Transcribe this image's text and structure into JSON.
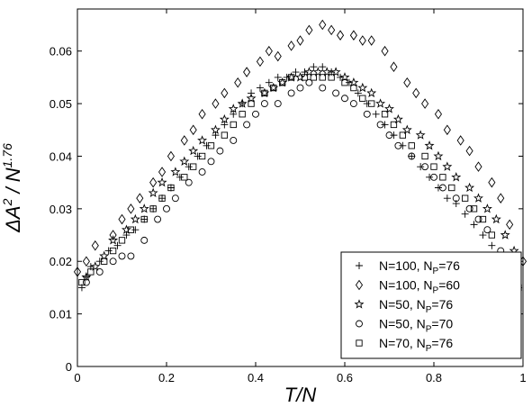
{
  "chart_data": {
    "type": "scatter",
    "xlabel": "T/N",
    "ylabel_parts": {
      "delta": "ΔA",
      "sq": "2",
      "mid": " / N",
      "exp": "1.76"
    },
    "xlim": [
      0,
      1
    ],
    "ylim": [
      0,
      0.068
    ],
    "xticks": [
      0,
      0.2,
      0.4,
      0.6,
      0.8,
      1
    ],
    "xtick_labels": [
      "0",
      "0.2",
      "0.4",
      "0.6",
      "0.8",
      "1"
    ],
    "yticks": [
      0,
      0.01,
      0.02,
      0.03,
      0.04,
      0.05,
      0.06
    ],
    "ytick_labels": [
      "0",
      "0.01",
      "0.02",
      "0.03",
      "0.04",
      "0.05",
      "0.06"
    ],
    "grid": false,
    "legend_position": "bottom-right",
    "series": [
      {
        "legend": {
          "a": "N=100, N",
          "sub": "P",
          "b": "=76"
        },
        "marker": "plus",
        "x": [
          0.01,
          0.02,
          0.03,
          0.05,
          0.07,
          0.09,
          0.11,
          0.13,
          0.15,
          0.17,
          0.19,
          0.21,
          0.23,
          0.25,
          0.27,
          0.29,
          0.31,
          0.33,
          0.35,
          0.37,
          0.39,
          0.41,
          0.43,
          0.45,
          0.47,
          0.49,
          0.51,
          0.53,
          0.55,
          0.57,
          0.59,
          0.61,
          0.63,
          0.65,
          0.67,
          0.69,
          0.71,
          0.73,
          0.75,
          0.77,
          0.79,
          0.81,
          0.83,
          0.85,
          0.87,
          0.89,
          0.91,
          0.93,
          0.95,
          0.97,
          0.99
        ],
        "y": [
          0.015,
          0.017,
          0.019,
          0.02,
          0.022,
          0.023,
          0.025,
          0.026,
          0.028,
          0.03,
          0.032,
          0.034,
          0.036,
          0.038,
          0.04,
          0.042,
          0.044,
          0.046,
          0.048,
          0.05,
          0.052,
          0.053,
          0.054,
          0.055,
          0.055,
          0.056,
          0.056,
          0.057,
          0.057,
          0.056,
          0.055,
          0.054,
          0.052,
          0.05,
          0.048,
          0.046,
          0.044,
          0.042,
          0.04,
          0.038,
          0.036,
          0.034,
          0.032,
          0.031,
          0.029,
          0.027,
          0.025,
          0.023,
          0.021,
          0.019,
          0.015
        ]
      },
      {
        "legend": {
          "a": "N=100, N",
          "sub": "P",
          "b": "=60"
        },
        "marker": "diamond",
        "x": [
          0.0,
          0.02,
          0.04,
          0.08,
          0.1,
          0.12,
          0.14,
          0.17,
          0.19,
          0.21,
          0.24,
          0.26,
          0.28,
          0.31,
          0.33,
          0.36,
          0.38,
          0.41,
          0.43,
          0.45,
          0.48,
          0.5,
          0.52,
          0.55,
          0.57,
          0.59,
          0.62,
          0.64,
          0.66,
          0.69,
          0.71,
          0.74,
          0.76,
          0.78,
          0.81,
          0.83,
          0.86,
          0.88,
          0.9,
          0.93,
          0.95,
          0.97,
          1.0
        ],
        "y": [
          0.018,
          0.02,
          0.023,
          0.025,
          0.028,
          0.03,
          0.032,
          0.035,
          0.037,
          0.04,
          0.043,
          0.045,
          0.048,
          0.05,
          0.052,
          0.054,
          0.056,
          0.058,
          0.06,
          0.059,
          0.061,
          0.062,
          0.064,
          0.065,
          0.064,
          0.063,
          0.063,
          0.062,
          0.062,
          0.06,
          0.057,
          0.054,
          0.052,
          0.05,
          0.048,
          0.045,
          0.043,
          0.041,
          0.038,
          0.035,
          0.032,
          0.027,
          0.02
        ]
      },
      {
        "legend": {
          "a": "N=50, N",
          "sub": "P",
          "b": "=76"
        },
        "marker": "star",
        "x": [
          0.02,
          0.04,
          0.06,
          0.08,
          0.11,
          0.13,
          0.15,
          0.17,
          0.19,
          0.22,
          0.24,
          0.26,
          0.28,
          0.31,
          0.33,
          0.35,
          0.37,
          0.39,
          0.42,
          0.44,
          0.46,
          0.48,
          0.5,
          0.52,
          0.54,
          0.56,
          0.58,
          0.6,
          0.62,
          0.64,
          0.66,
          0.68,
          0.7,
          0.72,
          0.74,
          0.77,
          0.79,
          0.81,
          0.83,
          0.85,
          0.88,
          0.9,
          0.92,
          0.94,
          0.96,
          0.98
        ],
        "y": [
          0.017,
          0.019,
          0.021,
          0.024,
          0.026,
          0.028,
          0.03,
          0.033,
          0.035,
          0.037,
          0.039,
          0.041,
          0.043,
          0.045,
          0.047,
          0.049,
          0.05,
          0.051,
          0.052,
          0.053,
          0.054,
          0.055,
          0.055,
          0.056,
          0.056,
          0.056,
          0.056,
          0.055,
          0.054,
          0.053,
          0.052,
          0.05,
          0.049,
          0.047,
          0.045,
          0.044,
          0.042,
          0.04,
          0.038,
          0.036,
          0.034,
          0.032,
          0.03,
          0.028,
          0.025,
          0.022
        ]
      },
      {
        "legend": {
          "a": "N=50, N",
          "sub": "P",
          "b": "=70"
        },
        "marker": "circle",
        "x": [
          0.02,
          0.05,
          0.08,
          0.1,
          0.12,
          0.15,
          0.18,
          0.2,
          0.22,
          0.25,
          0.28,
          0.3,
          0.32,
          0.35,
          0.38,
          0.4,
          0.42,
          0.45,
          0.48,
          0.5,
          0.52,
          0.55,
          0.58,
          0.6,
          0.62,
          0.65,
          0.68,
          0.7,
          0.72,
          0.75,
          0.78,
          0.8,
          0.82,
          0.85,
          0.88,
          0.9,
          0.92,
          0.95,
          0.98
        ],
        "y": [
          0.016,
          0.018,
          0.02,
          0.021,
          0.021,
          0.024,
          0.028,
          0.03,
          0.032,
          0.035,
          0.037,
          0.039,
          0.041,
          0.043,
          0.046,
          0.048,
          0.05,
          0.05,
          0.052,
          0.053,
          0.054,
          0.053,
          0.052,
          0.051,
          0.05,
          0.048,
          0.046,
          0.044,
          0.042,
          0.04,
          0.038,
          0.036,
          0.034,
          0.032,
          0.03,
          0.028,
          0.026,
          0.022,
          0.017
        ]
      },
      {
        "legend": {
          "a": "N=70, N",
          "sub": "P",
          "b": "=76"
        },
        "marker": "square",
        "x": [
          0.01,
          0.03,
          0.06,
          0.08,
          0.1,
          0.12,
          0.15,
          0.17,
          0.19,
          0.21,
          0.24,
          0.26,
          0.28,
          0.3,
          0.33,
          0.35,
          0.37,
          0.39,
          0.42,
          0.44,
          0.46,
          0.48,
          0.51,
          0.53,
          0.55,
          0.57,
          0.6,
          0.62,
          0.64,
          0.66,
          0.69,
          0.71,
          0.73,
          0.75,
          0.78,
          0.8,
          0.82,
          0.84,
          0.87,
          0.89,
          0.91,
          0.93,
          0.96,
          0.99
        ],
        "y": [
          0.016,
          0.018,
          0.02,
          0.022,
          0.024,
          0.026,
          0.028,
          0.03,
          0.032,
          0.034,
          0.036,
          0.038,
          0.04,
          0.042,
          0.044,
          0.046,
          0.048,
          0.05,
          0.052,
          0.053,
          0.054,
          0.055,
          0.055,
          0.055,
          0.055,
          0.055,
          0.054,
          0.053,
          0.051,
          0.05,
          0.048,
          0.046,
          0.044,
          0.042,
          0.04,
          0.038,
          0.036,
          0.034,
          0.032,
          0.03,
          0.028,
          0.025,
          0.021,
          0.015
        ]
      }
    ]
  }
}
